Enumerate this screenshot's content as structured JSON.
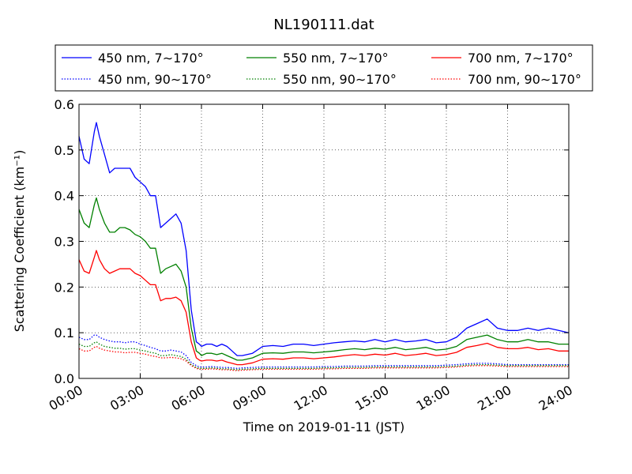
{
  "chart_data": {
    "type": "line",
    "title": "NL190111.dat",
    "xlabel": "Time on 2019-01-11 (JST)",
    "ylabel": "Scattering Coefficient (km⁻¹)",
    "xlim": [
      0,
      24
    ],
    "ylim": [
      0,
      0.6
    ],
    "grid": true,
    "legend_position": "top",
    "x_ticks": [
      0,
      3,
      6,
      9,
      12,
      15,
      18,
      21,
      24
    ],
    "x_tick_labels": [
      "00:00",
      "03:00",
      "06:00",
      "09:00",
      "12:00",
      "15:00",
      "18:00",
      "21:00",
      "24:00"
    ],
    "y_ticks": [
      0.0,
      0.1,
      0.2,
      0.3,
      0.4,
      0.5,
      0.6
    ],
    "y_tick_labels": [
      "0.0",
      "0.1",
      "0.2",
      "0.3",
      "0.4",
      "0.5",
      "0.6"
    ],
    "x": [
      0.0,
      0.25,
      0.5,
      0.75,
      0.85,
      1.0,
      1.25,
      1.5,
      1.75,
      2.0,
      2.25,
      2.5,
      2.75,
      3.0,
      3.25,
      3.5,
      3.75,
      4.0,
      4.25,
      4.5,
      4.75,
      5.0,
      5.25,
      5.5,
      5.75,
      5.9,
      6.0,
      6.25,
      6.5,
      6.75,
      7.0,
      7.25,
      7.5,
      7.75,
      8.0,
      8.5,
      9.0,
      9.5,
      10.0,
      10.5,
      11.0,
      11.5,
      12.0,
      12.5,
      13.0,
      13.5,
      14.0,
      14.5,
      15.0,
      15.5,
      16.0,
      16.5,
      17.0,
      17.5,
      18.0,
      18.5,
      19.0,
      19.5,
      20.0,
      20.5,
      21.0,
      21.5,
      22.0,
      22.5,
      23.0,
      23.5,
      24.0
    ],
    "series": [
      {
        "name": "450 nm, 7∼170°",
        "color": "#0000ff",
        "style": "solid",
        "values": [
          0.53,
          0.48,
          0.47,
          0.54,
          0.56,
          0.53,
          0.49,
          0.45,
          0.46,
          0.46,
          0.46,
          0.46,
          0.44,
          0.43,
          0.42,
          0.4,
          0.4,
          0.33,
          0.34,
          0.35,
          0.36,
          0.34,
          0.28,
          0.15,
          0.08,
          0.075,
          0.07,
          0.075,
          0.075,
          0.07,
          0.075,
          0.07,
          0.06,
          0.05,
          0.05,
          0.055,
          0.07,
          0.072,
          0.07,
          0.075,
          0.075,
          0.072,
          0.075,
          0.078,
          0.08,
          0.082,
          0.08,
          0.085,
          0.08,
          0.085,
          0.08,
          0.082,
          0.085,
          0.078,
          0.08,
          0.09,
          0.11,
          0.12,
          0.13,
          0.11,
          0.105,
          0.105,
          0.11,
          0.105,
          0.11,
          0.105,
          0.1
        ]
      },
      {
        "name": "450 nm, 90∼170°",
        "color": "#0000ff",
        "style": "dotted",
        "values": [
          0.09,
          0.085,
          0.085,
          0.095,
          0.095,
          0.09,
          0.085,
          0.082,
          0.08,
          0.08,
          0.078,
          0.08,
          0.08,
          0.075,
          0.072,
          0.068,
          0.065,
          0.06,
          0.06,
          0.062,
          0.06,
          0.058,
          0.05,
          0.035,
          0.028,
          0.025,
          0.025,
          0.025,
          0.026,
          0.025,
          0.024,
          0.024,
          0.023,
          0.022,
          0.023,
          0.024,
          0.025,
          0.025,
          0.025,
          0.025,
          0.025,
          0.025,
          0.026,
          0.026,
          0.027,
          0.027,
          0.027,
          0.028,
          0.028,
          0.028,
          0.028,
          0.028,
          0.028,
          0.028,
          0.029,
          0.03,
          0.032,
          0.033,
          0.033,
          0.032,
          0.03,
          0.03,
          0.03,
          0.03,
          0.03,
          0.03,
          0.03
        ]
      },
      {
        "name": "550 nm, 7∼170°",
        "color": "#008000",
        "style": "solid",
        "values": [
          0.37,
          0.34,
          0.33,
          0.38,
          0.395,
          0.37,
          0.34,
          0.32,
          0.32,
          0.33,
          0.33,
          0.325,
          0.315,
          0.31,
          0.3,
          0.285,
          0.285,
          0.23,
          0.24,
          0.245,
          0.25,
          0.235,
          0.2,
          0.11,
          0.06,
          0.055,
          0.05,
          0.055,
          0.055,
          0.052,
          0.055,
          0.05,
          0.045,
          0.04,
          0.04,
          0.045,
          0.055,
          0.056,
          0.055,
          0.058,
          0.058,
          0.056,
          0.058,
          0.06,
          0.063,
          0.065,
          0.063,
          0.066,
          0.064,
          0.068,
          0.063,
          0.065,
          0.068,
          0.062,
          0.064,
          0.07,
          0.085,
          0.09,
          0.095,
          0.085,
          0.08,
          0.08,
          0.085,
          0.08,
          0.08,
          0.075,
          0.075
        ]
      },
      {
        "name": "550 nm, 90∼170°",
        "color": "#008000",
        "style": "dotted",
        "values": [
          0.075,
          0.07,
          0.07,
          0.078,
          0.08,
          0.075,
          0.07,
          0.068,
          0.066,
          0.066,
          0.064,
          0.065,
          0.065,
          0.062,
          0.06,
          0.057,
          0.055,
          0.05,
          0.05,
          0.052,
          0.05,
          0.048,
          0.042,
          0.03,
          0.024,
          0.022,
          0.022,
          0.022,
          0.023,
          0.022,
          0.021,
          0.021,
          0.02,
          0.019,
          0.02,
          0.021,
          0.022,
          0.022,
          0.022,
          0.022,
          0.022,
          0.022,
          0.023,
          0.023,
          0.024,
          0.024,
          0.024,
          0.025,
          0.025,
          0.025,
          0.025,
          0.025,
          0.025,
          0.025,
          0.026,
          0.027,
          0.029,
          0.03,
          0.03,
          0.029,
          0.028,
          0.028,
          0.028,
          0.028,
          0.028,
          0.028,
          0.028
        ]
      },
      {
        "name": "700 nm, 7∼170°",
        "color": "#ff0000",
        "style": "solid",
        "values": [
          0.26,
          0.235,
          0.23,
          0.265,
          0.28,
          0.26,
          0.24,
          0.23,
          0.235,
          0.24,
          0.24,
          0.24,
          0.23,
          0.225,
          0.215,
          0.205,
          0.205,
          0.17,
          0.175,
          0.175,
          0.178,
          0.17,
          0.145,
          0.08,
          0.045,
          0.04,
          0.038,
          0.04,
          0.04,
          0.038,
          0.04,
          0.036,
          0.033,
          0.03,
          0.03,
          0.034,
          0.042,
          0.043,
          0.042,
          0.045,
          0.045,
          0.043,
          0.045,
          0.047,
          0.05,
          0.052,
          0.05,
          0.053,
          0.051,
          0.055,
          0.05,
          0.052,
          0.055,
          0.05,
          0.052,
          0.057,
          0.068,
          0.072,
          0.077,
          0.068,
          0.065,
          0.065,
          0.068,
          0.063,
          0.065,
          0.06,
          0.06
        ]
      },
      {
        "name": "700 nm, 90∼170°",
        "color": "#ff0000",
        "style": "dotted",
        "values": [
          0.065,
          0.06,
          0.06,
          0.068,
          0.07,
          0.066,
          0.062,
          0.06,
          0.058,
          0.058,
          0.056,
          0.057,
          0.057,
          0.055,
          0.053,
          0.05,
          0.048,
          0.045,
          0.045,
          0.046,
          0.045,
          0.043,
          0.038,
          0.028,
          0.022,
          0.02,
          0.02,
          0.02,
          0.021,
          0.02,
          0.019,
          0.019,
          0.018,
          0.017,
          0.018,
          0.019,
          0.02,
          0.02,
          0.02,
          0.02,
          0.02,
          0.02,
          0.021,
          0.021,
          0.022,
          0.022,
          0.022,
          0.023,
          0.023,
          0.023,
          0.023,
          0.023,
          0.023,
          0.023,
          0.024,
          0.025,
          0.027,
          0.028,
          0.028,
          0.027,
          0.026,
          0.026,
          0.026,
          0.026,
          0.026,
          0.026,
          0.026
        ]
      }
    ]
  }
}
